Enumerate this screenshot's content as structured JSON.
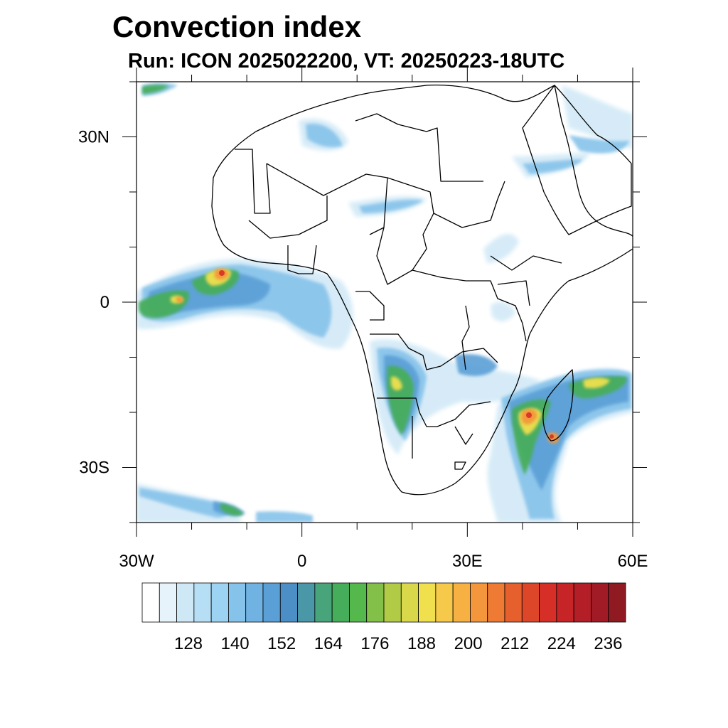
{
  "header": {
    "title": "Convection index",
    "subtitle": "Run: ICON 2025022200,  VT: 20250223-18UTC"
  },
  "axes": {
    "y_ticks": [
      {
        "label": "30N",
        "lat": 30
      },
      {
        "label": "0",
        "lat": 0
      },
      {
        "label": "30S",
        "lat": -30
      }
    ],
    "x_ticks": [
      {
        "label": "30W",
        "lon": -30
      },
      {
        "label": "0",
        "lon": 0
      },
      {
        "label": "30E",
        "lon": 30
      },
      {
        "label": "60E",
        "lon": 60
      }
    ],
    "lon_range": [
      -30,
      60
    ],
    "lat_range": [
      -40,
      40
    ]
  },
  "colorbar": {
    "labels": [
      "128",
      "140",
      "152",
      "164",
      "176",
      "188",
      "200",
      "212",
      "224",
      "236"
    ],
    "colors": [
      "#ffffff",
      "#e6f3fb",
      "#cfe8f6",
      "#b6def4",
      "#9dd3f2",
      "#86c3ea",
      "#70b2e2",
      "#5a9fd6",
      "#4b8fc6",
      "#4a97a8",
      "#48a47a",
      "#46ad5b",
      "#55b84d",
      "#83c04a",
      "#b2cb47",
      "#d9d84a",
      "#f0e04e",
      "#f6c94a",
      "#f7b143",
      "#f4963b",
      "#ee7a33",
      "#e6602d",
      "#de4629",
      "#d62f27",
      "#c72428",
      "#b31e27",
      "#a01b25",
      "#8f1a22"
    ]
  },
  "map_colors": {
    "land_outline": "#000000",
    "low": "#b6def4",
    "mid": "#5a9fd6",
    "green": "#46ad5b",
    "yellow": "#f0e04e",
    "orange": "#f4963b",
    "red": "#d62f27"
  }
}
